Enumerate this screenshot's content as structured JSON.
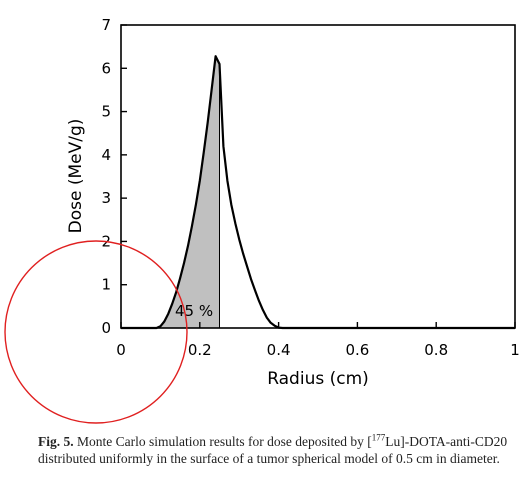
{
  "chart_data": {
    "type": "line",
    "xlabel": "Radius (cm)",
    "ylabel": "Dose (MeV/g)",
    "xlim": [
      0,
      1
    ],
    "ylim": [
      0,
      7
    ],
    "x_ticks": [
      "0",
      "0.2",
      "0.4",
      "0.6",
      "0.8",
      "1"
    ],
    "y_ticks": [
      "0",
      "1",
      "2",
      "3",
      "4",
      "5",
      "6",
      "7"
    ],
    "grid": false,
    "series": [
      {
        "x": [
          0,
          0.09,
          0.1,
          0.11,
          0.12,
          0.13,
          0.14,
          0.15,
          0.16,
          0.17,
          0.18,
          0.19,
          0.2,
          0.21,
          0.22,
          0.23,
          0.24,
          0.25,
          0.26,
          0.27,
          0.28,
          0.29,
          0.3,
          0.31,
          0.32,
          0.33,
          0.34,
          0.35,
          0.36,
          0.37,
          0.38,
          0.39,
          0.4,
          0.41,
          0.42,
          0.5,
          1.0
        ],
        "y": [
          0,
          0,
          0.04,
          0.15,
          0.33,
          0.56,
          0.83,
          1.15,
          1.5,
          1.9,
          2.35,
          2.85,
          3.4,
          4.05,
          4.75,
          5.5,
          6.28,
          6.1,
          4.2,
          3.4,
          2.85,
          2.42,
          2.05,
          1.72,
          1.42,
          1.13,
          0.87,
          0.63,
          0.42,
          0.24,
          0.12,
          0.05,
          0.01,
          0,
          0,
          0,
          0
        ]
      }
    ],
    "shaded_region": {
      "x_from": 0,
      "x_to": 0.25,
      "color": "#c0c0c0"
    },
    "annotation": "45 %",
    "overlay_circle_color": "#e02020"
  },
  "caption": {
    "label": "Fig. 5.",
    "text_before": " Monte Carlo simulation results for dose deposited by [",
    "superscript": "177",
    "text_after": "Lu]-DOTA-anti-CD20 distributed uniformly in the surface of a tumor spherical model of 0.5 cm in diameter."
  }
}
